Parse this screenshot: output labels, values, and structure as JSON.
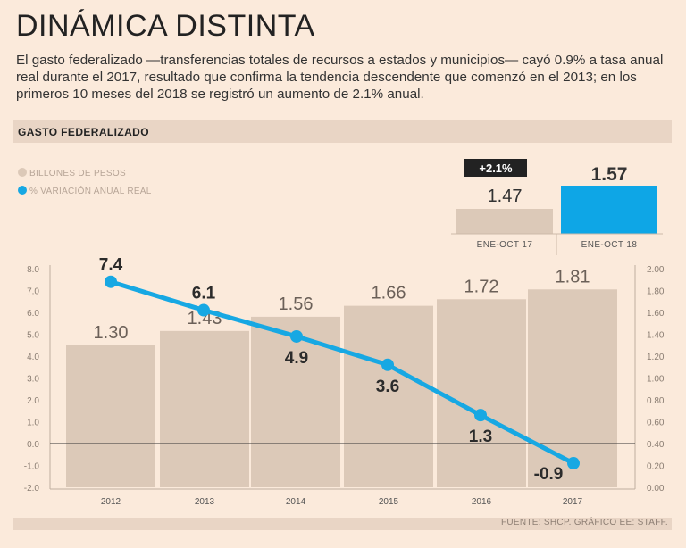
{
  "header": {
    "title": "DINÁMICA DISTINTA",
    "subtitle": "El gasto federalizado —transferencias totales de recursos a estados y municipios— cayó 0.9% a tasa anual real durante el 2017, resultado que confirma la tendencia descendente que comenzó en el 2013; en los primeros 10 meses del 2018 se registró un aumento de 2.1% anual."
  },
  "section": {
    "label": "GASTO FEDERALIZADO"
  },
  "legend": {
    "bars_label": "BILLONES DE PESOS",
    "line_label": "% VARIACIÓN ANUAL REAL"
  },
  "colors": {
    "bar": "#dcc9b8",
    "line": "#17a8e3",
    "background": "#fbeadb",
    "highlight_bar": "#0ea6e6",
    "badge": "#222222"
  },
  "comparison": {
    "change_badge": "+2.1%",
    "items": [
      {
        "label": "ENE-OCT 17",
        "value": 1.47,
        "display": "1.47"
      },
      {
        "label": "ENE-OCT 18",
        "value": 1.57,
        "display": "1.57"
      }
    ]
  },
  "chart_data": [
    {
      "type": "bar",
      "title": "GASTO FEDERALIZADO",
      "categories": [
        "2012",
        "2013",
        "2014",
        "2015",
        "2016",
        "2017"
      ],
      "series": [
        {
          "name": "BILLONES DE PESOS",
          "axis": "right",
          "values": [
            1.3,
            1.43,
            1.56,
            1.66,
            1.72,
            1.81
          ],
          "labels": [
            "1.30",
            "1.43",
            "1.56",
            "1.66",
            "1.72",
            "1.81"
          ]
        },
        {
          "name": "% VARIACIÓN ANUAL REAL",
          "type": "line",
          "axis": "left",
          "values": [
            7.4,
            6.1,
            4.9,
            3.6,
            1.3,
            -0.9
          ],
          "labels": [
            "7.4",
            "6.1",
            "4.9",
            "3.6",
            "1.3",
            "-0.9"
          ]
        }
      ],
      "y_left": {
        "ylim": [
          -2.0,
          8.0
        ],
        "ticks": [
          "8.0",
          "7.0",
          "6.0",
          "5.0",
          "4.0",
          "3.0",
          "2.0",
          "1.0",
          "0.0",
          "-1.0",
          "-2.0"
        ]
      },
      "y_right": {
        "ylim": [
          0.0,
          2.0
        ],
        "ticks": [
          "2.00",
          "1.80",
          "1.60",
          "1.40",
          "1.20",
          "1.00",
          "0.80",
          "0.60",
          "0.40",
          "0.20",
          "0.00"
        ]
      },
      "baseline": 0.0,
      "grid": false
    },
    {
      "type": "bar",
      "title": "",
      "categories": [
        "ENE-OCT 17",
        "ENE-OCT 18"
      ],
      "values": [
        1.47,
        1.57
      ],
      "annotation": "+2.1%"
    }
  ],
  "footer": {
    "source": "FUENTE: SHCP. GRÁFICO EE: STAFF."
  }
}
